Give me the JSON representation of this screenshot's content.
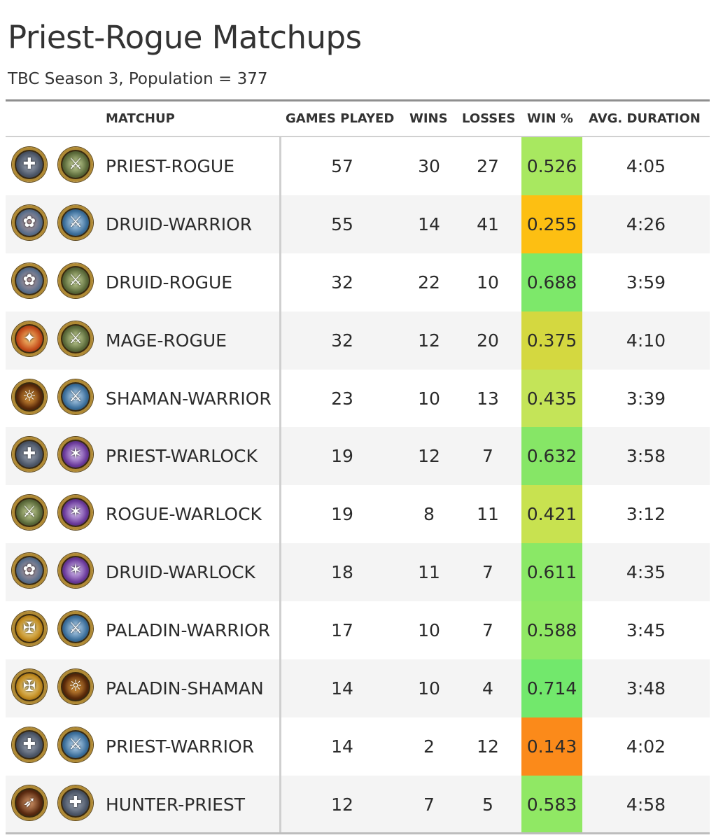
{
  "title": "Priest-Rogue Matchups",
  "subtitle": "TBC Season 3, Population = 377",
  "columns": {
    "matchup": "MATCHUP",
    "games": "GAMES PLAYED",
    "wins": "WINS",
    "losses": "LOSSES",
    "winpct": "WIN %",
    "duration": "AVG. DURATION"
  },
  "rows": [
    {
      "matchup": "PRIEST-ROGUE",
      "icon1": "priest-icon",
      "icon2": "rogue-icon",
      "games": "57",
      "wins": "30",
      "losses": "27",
      "winpct": "0.526",
      "winpct_color": "#a8e860",
      "duration": "4:05"
    },
    {
      "matchup": "DRUID-WARRIOR",
      "icon1": "druid-icon",
      "icon2": "warrior-icon",
      "games": "55",
      "wins": "14",
      "losses": "41",
      "winpct": "0.255",
      "winpct_color": "#fdbf12",
      "duration": "4:26"
    },
    {
      "matchup": "DRUID-ROGUE",
      "icon1": "druid-icon",
      "icon2": "rogue-icon",
      "games": "32",
      "wins": "22",
      "losses": "10",
      "winpct": "0.688",
      "winpct_color": "#7de86a",
      "duration": "3:59"
    },
    {
      "matchup": "MAGE-ROGUE",
      "icon1": "mage-icon",
      "icon2": "rogue-icon",
      "games": "32",
      "wins": "12",
      "losses": "20",
      "winpct": "0.375",
      "winpct_color": "#d4d840",
      "duration": "4:10"
    },
    {
      "matchup": "SHAMAN-WARRIOR",
      "icon1": "shaman-icon",
      "icon2": "warrior-icon",
      "games": "23",
      "wins": "10",
      "losses": "13",
      "winpct": "0.435",
      "winpct_color": "#c4e458",
      "duration": "3:39"
    },
    {
      "matchup": "PRIEST-WARLOCK",
      "icon1": "priest-icon",
      "icon2": "warlock-icon",
      "games": "19",
      "wins": "12",
      "losses": "7",
      "winpct": "0.632",
      "winpct_color": "#86e666",
      "duration": "3:58"
    },
    {
      "matchup": "ROGUE-WARLOCK",
      "icon1": "rogue-icon",
      "icon2": "warlock-icon",
      "games": "19",
      "wins": "8",
      "losses": "11",
      "winpct": "0.421",
      "winpct_color": "#c8e250",
      "duration": "3:12"
    },
    {
      "matchup": "DRUID-WARLOCK",
      "icon1": "druid-icon",
      "icon2": "warlock-icon",
      "games": "18",
      "wins": "11",
      "losses": "7",
      "winpct": "0.611",
      "winpct_color": "#8ae866",
      "duration": "4:35"
    },
    {
      "matchup": "PALADIN-WARRIOR",
      "icon1": "paladin-icon",
      "icon2": "warrior-icon",
      "games": "17",
      "wins": "10",
      "losses": "7",
      "winpct": "0.588",
      "winpct_color": "#90e864",
      "duration": "3:45"
    },
    {
      "matchup": "PALADIN-SHAMAN",
      "icon1": "paladin-icon",
      "icon2": "shaman-icon",
      "games": "14",
      "wins": "10",
      "losses": "4",
      "winpct": "0.714",
      "winpct_color": "#72e86c",
      "duration": "3:48"
    },
    {
      "matchup": "PRIEST-WARRIOR",
      "icon1": "priest-icon",
      "icon2": "warrior-icon",
      "games": "14",
      "wins": "2",
      "losses": "12",
      "winpct": "0.143",
      "winpct_color": "#fb8a1a",
      "duration": "4:02"
    },
    {
      "matchup": "HUNTER-PRIEST",
      "icon1": "hunter-icon",
      "icon2": "priest-icon",
      "games": "12",
      "wins": "7",
      "losses": "5",
      "winpct": "0.583",
      "winpct_color": "#90e864",
      "duration": "4:58"
    }
  ]
}
